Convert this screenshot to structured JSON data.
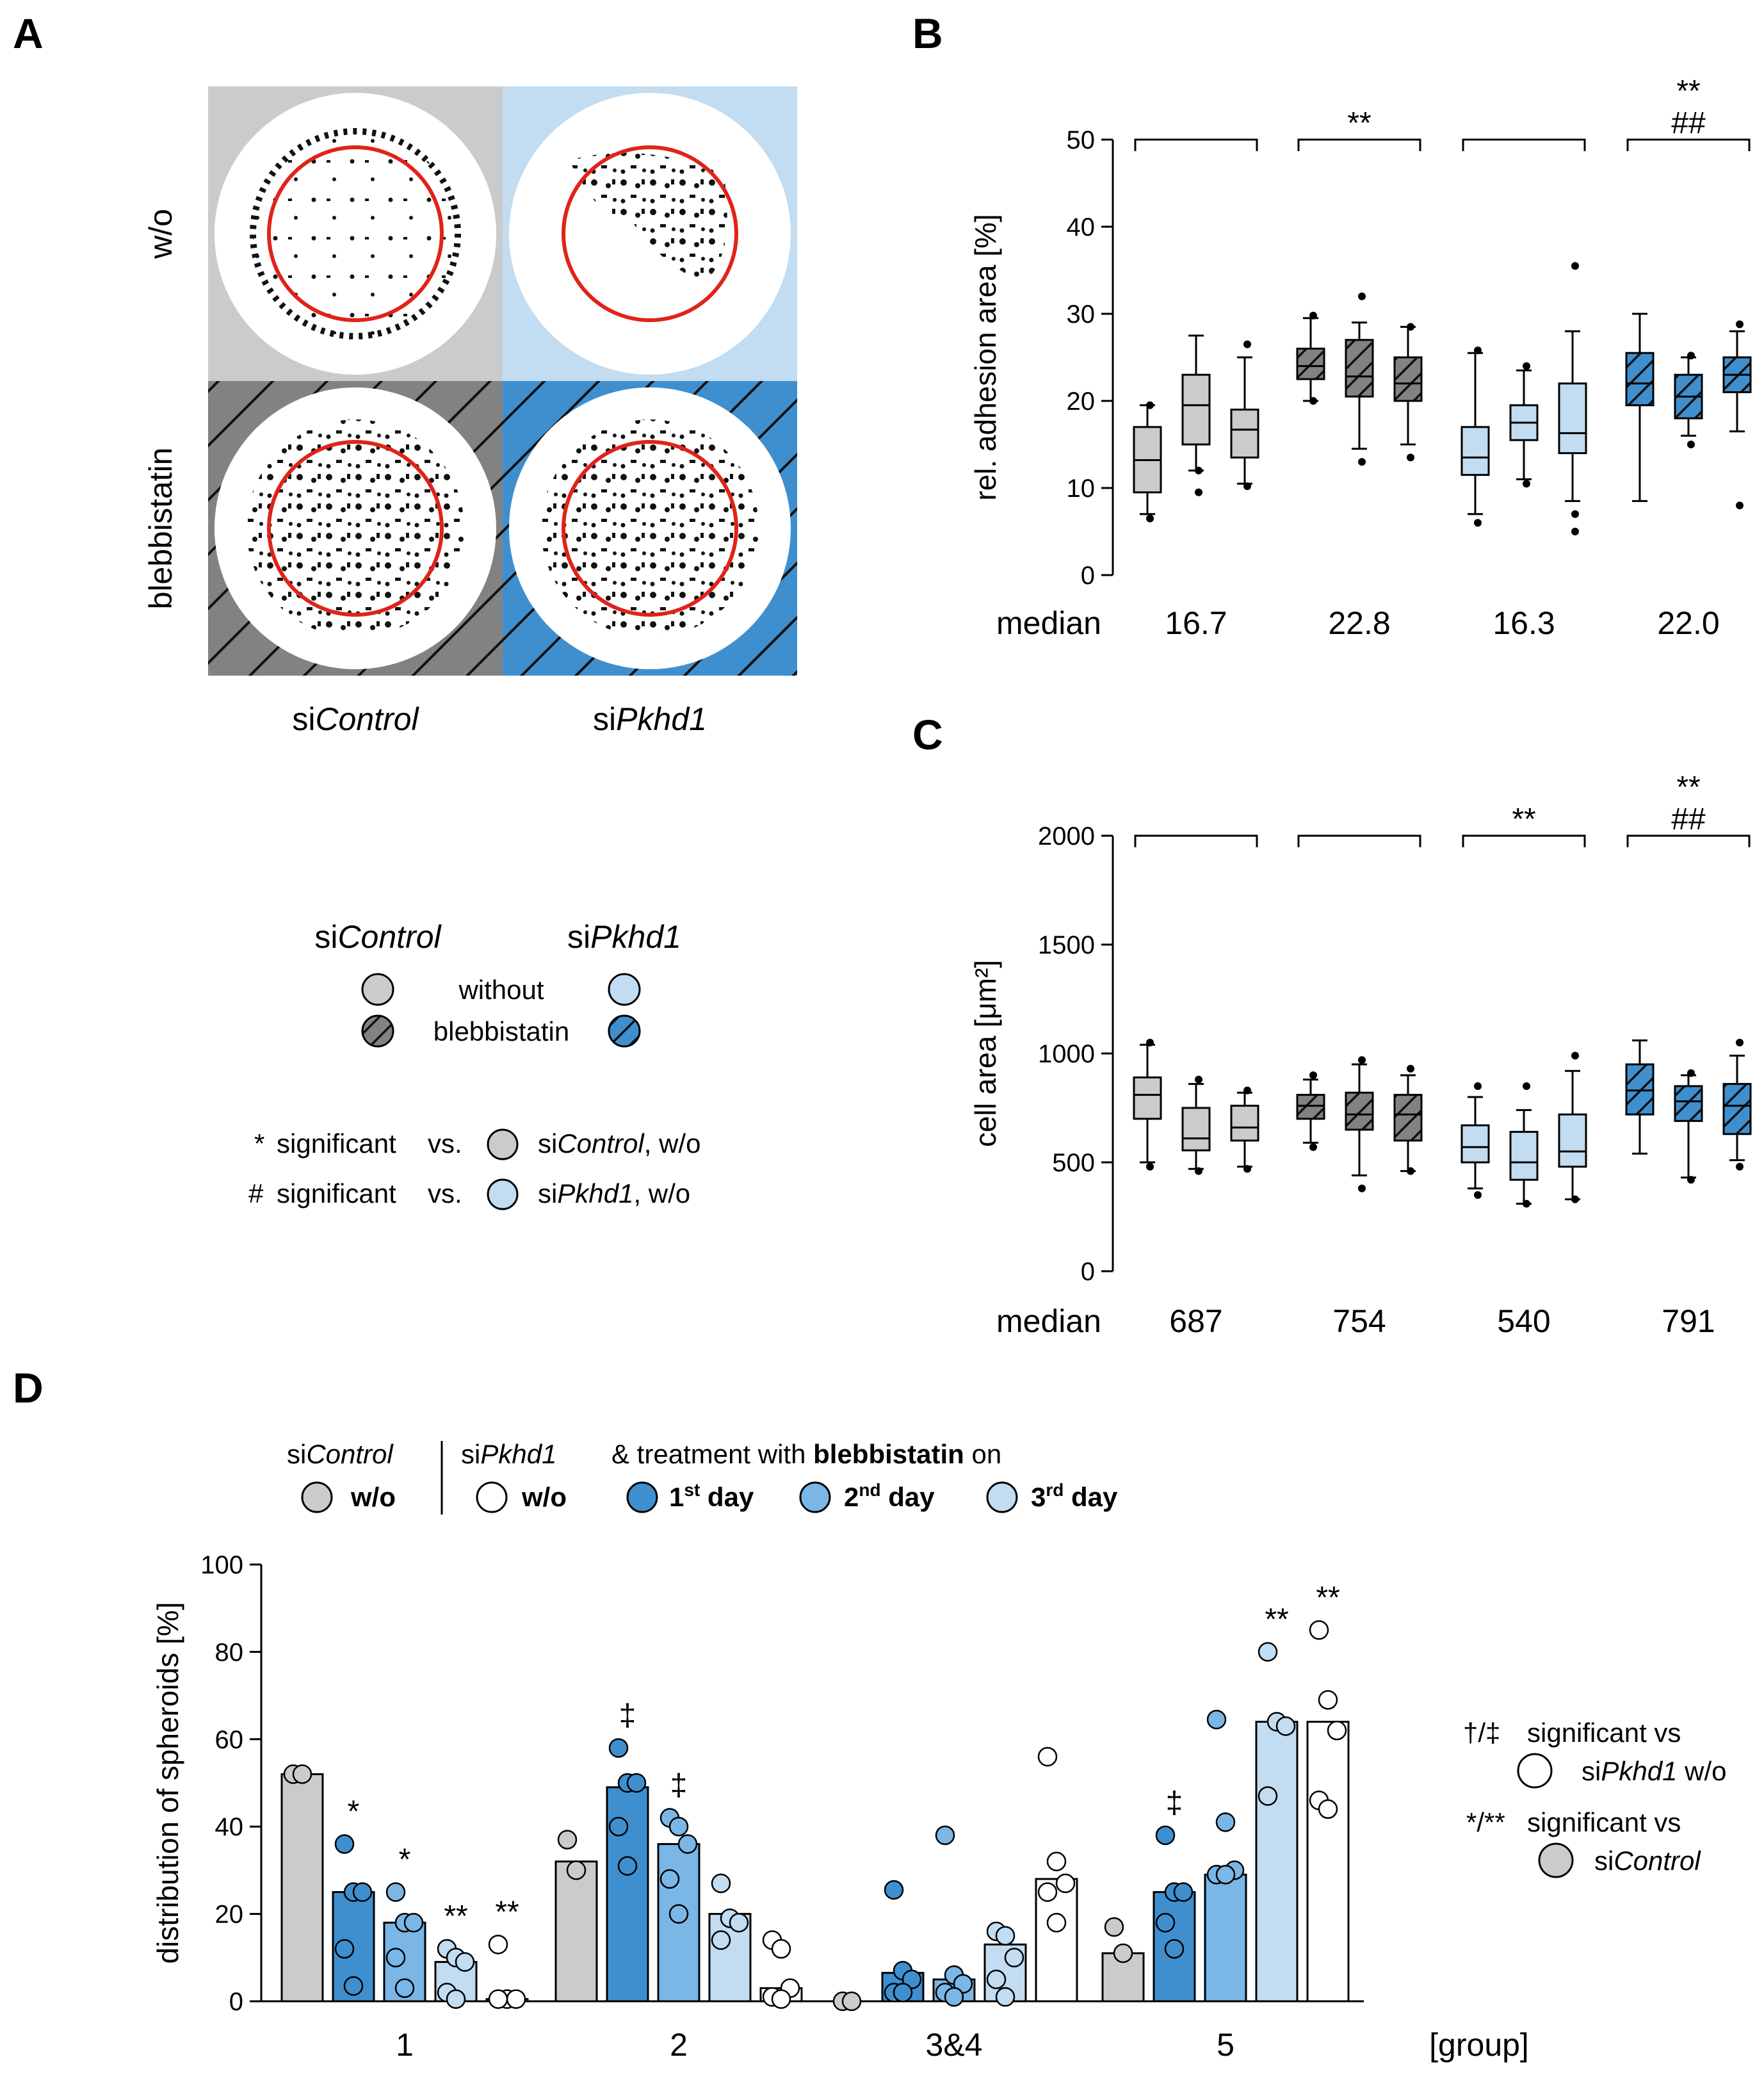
{
  "panels": {
    "a": "A",
    "b": "B",
    "c": "C",
    "d": "D"
  },
  "panelA": {
    "row_labels": [
      "w/o",
      "blebbistatin"
    ],
    "col_labels": [
      {
        "prefix": "si",
        "italic": "Control"
      },
      {
        "prefix": "si",
        "italic": "Pkhd1"
      }
    ],
    "colors": {
      "gray": "#cbcbcb",
      "light_blue": "#c2dcf1",
      "dark_gray": "#828282",
      "blue": "#3f8fcf",
      "red": "#e0231a"
    }
  },
  "legendA": {
    "header": [
      {
        "prefix": "si",
        "italic": "Control"
      },
      {
        "prefix": "si",
        "italic": "Pkhd1"
      }
    ],
    "rows": [
      "without",
      "blebbistatin"
    ],
    "sig_lines": [
      {
        "mark": "*",
        "text": "significant",
        "vs": "vs.",
        "group": {
          "prefix": "si",
          "italic": "Control",
          "suffix": ", w/o"
        }
      },
      {
        "mark": "#",
        "text": "significant",
        "vs": "vs.",
        "group": {
          "prefix": "si",
          "italic": "Pkhd1",
          "suffix": ", w/o"
        }
      }
    ]
  },
  "chart_data": [
    {
      "id": "B",
      "type": "box",
      "ylabel": "rel. adhesion area [%]",
      "ylim": [
        0,
        50
      ],
      "yticks": [
        0,
        10,
        20,
        30,
        40,
        50
      ],
      "median_label": "median",
      "groups": [
        {
          "median_text": "16.7",
          "fill": "gray",
          "hatched": false,
          "sig": [],
          "boxes": [
            {
              "q1": 9.5,
              "med": 13.2,
              "q3": 17,
              "wlo": 7,
              "whi": 19.5,
              "outliers": [
                6.5,
                19.5
              ]
            },
            {
              "q1": 15,
              "med": 19.5,
              "q3": 23,
              "wlo": 12,
              "whi": 27.5,
              "outliers": [
                9.5,
                12
              ]
            },
            {
              "q1": 13.5,
              "med": 16.7,
              "q3": 19,
              "wlo": 10.5,
              "whi": 25,
              "outliers": [
                10.2,
                26.5
              ]
            }
          ]
        },
        {
          "median_text": "22.8",
          "fill": "dark_gray",
          "hatched": true,
          "sig": [
            "**"
          ],
          "boxes": [
            {
              "q1": 22.5,
              "med": 24,
              "q3": 26,
              "wlo": 20,
              "whi": 29.5,
              "outliers": [
                20,
                29.8
              ]
            },
            {
              "q1": 20.5,
              "med": 22.8,
              "q3": 27,
              "wlo": 14.5,
              "whi": 29,
              "outliers": [
                13,
                32
              ]
            },
            {
              "q1": 20,
              "med": 22,
              "q3": 25,
              "wlo": 15,
              "whi": 28.5,
              "outliers": [
                13.5,
                28.5
              ]
            }
          ]
        },
        {
          "median_text": "16.3",
          "fill": "light_blue",
          "hatched": false,
          "sig": [],
          "boxes": [
            {
              "q1": 11.5,
              "med": 13.5,
              "q3": 17,
              "wlo": 7,
              "whi": 25.5,
              "outliers": [
                6,
                25.8
              ]
            },
            {
              "q1": 15.5,
              "med": 17.5,
              "q3": 19.5,
              "wlo": 11,
              "whi": 23.5,
              "outliers": [
                10.5,
                24
              ]
            },
            {
              "q1": 14,
              "med": 16.3,
              "q3": 22,
              "wlo": 8.5,
              "whi": 28,
              "outliers": [
                5,
                7,
                35.5
              ]
            }
          ]
        },
        {
          "median_text": "22.0",
          "fill": "blue",
          "hatched": true,
          "sig": [
            "**",
            "##"
          ],
          "boxes": [
            {
              "q1": 19.5,
              "med": 22,
              "q3": 25.5,
              "wlo": 8.5,
              "whi": 30,
              "outliers": []
            },
            {
              "q1": 18,
              "med": 20.5,
              "q3": 23,
              "wlo": 16,
              "whi": 25,
              "outliers": [
                15,
                25.2
              ]
            },
            {
              "q1": 21,
              "med": 23,
              "q3": 25,
              "wlo": 16.5,
              "whi": 28,
              "outliers": [
                8,
                28.8
              ]
            }
          ]
        }
      ]
    },
    {
      "id": "C",
      "type": "box",
      "ylabel": "cell area [μm²]",
      "ylim": [
        0,
        2000
      ],
      "yticks": [
        0,
        500,
        1000,
        1500,
        2000
      ],
      "median_label": "median",
      "groups": [
        {
          "median_text": "687",
          "fill": "gray",
          "hatched": false,
          "sig": [],
          "boxes": [
            {
              "q1": 700,
              "med": 810,
              "q3": 890,
              "wlo": 500,
              "whi": 1040,
              "outliers": [
                480,
                1050
              ]
            },
            {
              "q1": 555,
              "med": 610,
              "q3": 750,
              "wlo": 470,
              "whi": 860,
              "outliers": [
                460,
                880
              ]
            },
            {
              "q1": 600,
              "med": 660,
              "q3": 760,
              "wlo": 480,
              "whi": 820,
              "outliers": [
                470,
                830
              ]
            }
          ]
        },
        {
          "median_text": "754",
          "fill": "dark_gray",
          "hatched": true,
          "sig": [],
          "boxes": [
            {
              "q1": 700,
              "med": 760,
              "q3": 810,
              "wlo": 590,
              "whi": 880,
              "outliers": [
                570,
                900
              ]
            },
            {
              "q1": 650,
              "med": 720,
              "q3": 820,
              "wlo": 440,
              "whi": 950,
              "outliers": [
                380,
                970
              ]
            },
            {
              "q1": 600,
              "med": 720,
              "q3": 810,
              "wlo": 460,
              "whi": 900,
              "outliers": [
                460,
                930
              ]
            }
          ]
        },
        {
          "median_text": "540",
          "fill": "light_blue",
          "hatched": false,
          "sig": [
            "**"
          ],
          "boxes": [
            {
              "q1": 500,
              "med": 570,
              "q3": 670,
              "wlo": 380,
              "whi": 800,
              "outliers": [
                350,
                850
              ]
            },
            {
              "q1": 420,
              "med": 500,
              "q3": 640,
              "wlo": 310,
              "whi": 740,
              "outliers": [
                310,
                850
              ]
            },
            {
              "q1": 480,
              "med": 550,
              "q3": 720,
              "wlo": 330,
              "whi": 920,
              "outliers": [
                330,
                990
              ]
            }
          ]
        },
        {
          "median_text": "791",
          "fill": "blue",
          "hatched": true,
          "sig": [
            "**",
            "##"
          ],
          "boxes": [
            {
              "q1": 720,
              "med": 830,
              "q3": 950,
              "wlo": 540,
              "whi": 1060,
              "outliers": []
            },
            {
              "q1": 690,
              "med": 780,
              "q3": 850,
              "wlo": 430,
              "whi": 900,
              "outliers": [
                420,
                910
              ]
            },
            {
              "q1": 630,
              "med": 760,
              "q3": 860,
              "wlo": 510,
              "whi": 990,
              "outliers": [
                480,
                1050
              ]
            }
          ]
        }
      ]
    },
    {
      "id": "D",
      "type": "bar",
      "ylabel": "distribution of spheroids [%]",
      "ylim": [
        0,
        100
      ],
      "yticks": [
        0,
        20,
        40,
        60,
        80,
        100
      ],
      "xlabel": "[group]",
      "categories": [
        "1",
        "2",
        "3&4",
        "5"
      ],
      "series": [
        {
          "name": "siControl w/o",
          "color": "#cbcbcb",
          "values": [
            52,
            32,
            0,
            11
          ],
          "points": [
            [
              52,
              52
            ],
            [
              37,
              30
            ],
            [
              0,
              0
            ],
            [
              17,
              11
            ]
          ]
        },
        {
          "name": "1st day",
          "color": "#3f8fcf",
          "values": [
            25,
            49,
            6.5,
            25
          ],
          "points": [
            [
              36,
              25,
              25,
              12,
              3.5
            ],
            [
              58,
              50,
              50,
              40,
              31
            ],
            [
              25.5,
              7,
              5,
              2,
              2
            ],
            [
              38,
              25,
              25,
              18,
              12
            ]
          ]
        },
        {
          "name": "2nd day",
          "color": "#7ab6e6",
          "values": [
            18,
            36,
            5,
            29
          ],
          "points": [
            [
              25,
              18,
              18,
              10,
              3
            ],
            [
              42,
              40,
              36,
              28,
              20
            ],
            [
              38,
              6,
              4,
              2,
              1
            ],
            [
              64.5,
              41,
              30,
              29,
              29
            ]
          ]
        },
        {
          "name": "3rd day",
          "color": "#c2dcf1",
          "values": [
            9,
            20,
            13,
            64
          ],
          "points": [
            [
              12,
              10,
              9,
              2,
              0.5
            ],
            [
              27,
              19,
              18,
              14
            ],
            [
              16,
              15,
              10,
              5,
              1
            ],
            [
              80,
              64,
              63,
              47
            ]
          ]
        },
        {
          "name": "siPkhd1 w/o",
          "color": "#ffffff",
          "values": [
            0.5,
            3,
            28,
            64
          ],
          "points": [
            [
              13,
              0.5,
              0.5,
              0.5
            ],
            [
              14,
              12,
              3,
              1,
              0.5
            ],
            [
              56,
              32,
              27,
              25,
              18
            ],
            [
              85,
              69,
              62,
              46,
              44
            ]
          ]
        }
      ],
      "sig": [
        {
          "cat": 0,
          "series": 1,
          "mark": "*"
        },
        {
          "cat": 0,
          "series": 2,
          "mark": "*"
        },
        {
          "cat": 0,
          "series": 3,
          "mark": "**"
        },
        {
          "cat": 0,
          "series": 4,
          "mark": "**"
        },
        {
          "cat": 1,
          "series": 1,
          "mark": "‡"
        },
        {
          "cat": 1,
          "series": 2,
          "mark": "‡"
        },
        {
          "cat": 3,
          "series": 1,
          "mark": "‡"
        },
        {
          "cat": 3,
          "series": 3,
          "mark": "**"
        },
        {
          "cat": 3,
          "series": 4,
          "mark": "**"
        }
      ]
    }
  ],
  "legendD": {
    "top": [
      {
        "prefix": "si",
        "italic": "Control"
      },
      {
        "prefix": "si",
        "italic": "Pkhd1"
      }
    ],
    "treat_prefix": "& treatment with ",
    "treat_bold": "blebbistatin",
    "treat_suffix": " on",
    "items": [
      {
        "label": "w/o"
      },
      {
        "label": "w/o"
      },
      {
        "num": "1",
        "sup": "st",
        "word": " day"
      },
      {
        "num": "2",
        "sup": "nd",
        "word": " day"
      },
      {
        "num": "3",
        "sup": "rd",
        "word": " day"
      }
    ],
    "sig_right": [
      {
        "mark": "†/‡",
        "text": "significant vs",
        "group": {
          "prefix": "si",
          "italic": "Pkhd1",
          "suffix": " w/o"
        }
      },
      {
        "mark": "*/**",
        "text": "significant vs",
        "group": {
          "prefix": "si",
          "italic": "Control",
          "suffix": ""
        }
      }
    ]
  }
}
